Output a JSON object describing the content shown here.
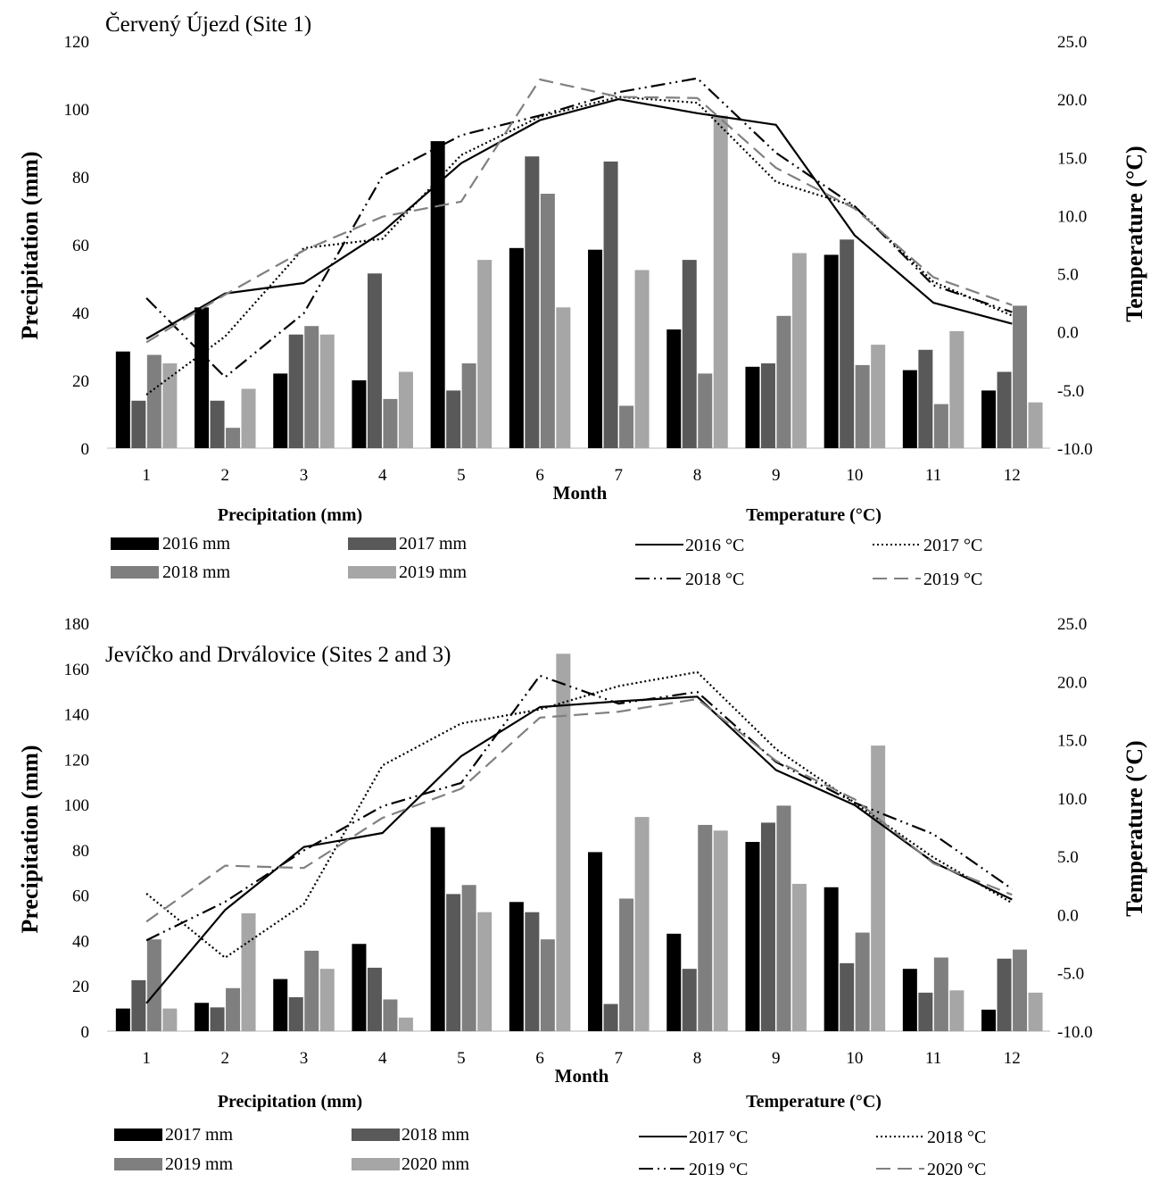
{
  "chart_data": [
    {
      "type": "bar+line",
      "title": "Červený Újezd (Site 1)",
      "xlabel": "Month",
      "ylabel_left": "Precipitation (mm)",
      "ylabel_right": "Temperature (°C)",
      "ylim_left": [
        0,
        120
      ],
      "ylim_right": [
        -10,
        25
      ],
      "yticks_left": [
        "0",
        "20",
        "40",
        "60",
        "80",
        "100",
        "120"
      ],
      "yticks_right": [
        "-10.0",
        "-5.0",
        "0.0",
        "5.0",
        "10.0",
        "15.0",
        "20.0",
        "25.0"
      ],
      "categories": [
        "1",
        "2",
        "3",
        "4",
        "5",
        "6",
        "7",
        "8",
        "9",
        "10",
        "11",
        "12"
      ],
      "legend_precip_title": "Precipitation (mm)",
      "legend_temp_title": "Temperature (°C)",
      "bar_series": [
        {
          "name": "2016 mm",
          "color": "#000000",
          "values": [
            28.5,
            41.5,
            22,
            20,
            90.5,
            59,
            58.5,
            35,
            24,
            57,
            23,
            17
          ]
        },
        {
          "name": "2017 mm",
          "color": "#595959",
          "values": [
            14,
            14,
            33.5,
            51.5,
            17,
            86,
            84.5,
            55.5,
            25,
            61.5,
            29,
            22.5
          ]
        },
        {
          "name": "2018 mm",
          "color": "#7f7f7f",
          "values": [
            27.5,
            6,
            36,
            14.5,
            25,
            75,
            12.5,
            22,
            39,
            24.5,
            13,
            42
          ]
        },
        {
          "name": "2019 mm",
          "color": "#a6a6a6",
          "values": [
            25,
            17.5,
            33.5,
            22.5,
            55.5,
            41.5,
            52.5,
            98,
            57.5,
            30.5,
            34.5,
            13.5
          ]
        }
      ],
      "line_series": [
        {
          "name": "2016 °C",
          "style": "solid",
          "color": "#000000",
          "values": [
            -0.6,
            3.3,
            4.2,
            8.6,
            14.5,
            18.2,
            20.0,
            18.8,
            17.8,
            8.3,
            2.5,
            0.7
          ]
        },
        {
          "name": "2017 °C",
          "style": "dotted",
          "color": "#000000",
          "values": [
            -5.4,
            -0.4,
            7.2,
            8.0,
            15.2,
            18.5,
            20.2,
            19.7,
            12.9,
            10.8,
            4.3,
            1.4
          ]
        },
        {
          "name": "2018 °C",
          "style": "dashdotdot",
          "color": "#000000",
          "values": [
            2.9,
            -3.9,
            1.6,
            13.4,
            16.9,
            18.6,
            20.6,
            21.8,
            15.4,
            10.8,
            4.0,
            1.7
          ]
        },
        {
          "name": "2019 °C",
          "style": "dashed",
          "color": "#808080",
          "values": [
            -0.9,
            3.2,
            7.0,
            9.9,
            11.2,
            21.7,
            20.2,
            20.1,
            14.1,
            10.6,
            4.7,
            2.3
          ]
        }
      ]
    },
    {
      "type": "bar+line",
      "title": "Jevíčko and Drválovice (Sites 2 and 3)",
      "xlabel": "Month",
      "ylabel_left": "Precipitation (mm)",
      "ylabel_right": "Temperature (°C)",
      "ylim_left": [
        0,
        180
      ],
      "ylim_right": [
        -10,
        25
      ],
      "yticks_left": [
        "0",
        "20",
        "40",
        "60",
        "80",
        "100",
        "120",
        "140",
        "160",
        "180"
      ],
      "yticks_right": [
        "-10.0",
        "-5.0",
        "0.0",
        "5.0",
        "10.0",
        "15.0",
        "20.0",
        "25.0"
      ],
      "categories": [
        "1",
        "2",
        "3",
        "4",
        "5",
        "6",
        "7",
        "8",
        "9",
        "10",
        "11",
        "12"
      ],
      "legend_precip_title": "Precipitation (mm)",
      "legend_temp_title": "Temperature (°C)",
      "bar_series": [
        {
          "name": "2017 mm",
          "color": "#000000",
          "values": [
            10,
            12.5,
            23,
            38.5,
            90,
            57,
            79,
            43,
            83.5,
            63.5,
            27.5,
            9.5
          ]
        },
        {
          "name": "2018 mm",
          "color": "#595959",
          "values": [
            22.5,
            10.5,
            15,
            28,
            60.5,
            52.5,
            12,
            27.5,
            92,
            30,
            17,
            32
          ]
        },
        {
          "name": "2019 mm",
          "color": "#7f7f7f",
          "values": [
            40.5,
            19,
            35.5,
            14,
            64.5,
            40.5,
            58.5,
            91,
            99.5,
            43.5,
            32.5,
            36
          ]
        },
        {
          "name": "2020 mm",
          "color": "#a6a6a6",
          "values": [
            10,
            52,
            27.5,
            6,
            52.5,
            166.5,
            94.5,
            88.5,
            65,
            126,
            18,
            17
          ]
        }
      ],
      "line_series": [
        {
          "name": "2017 °C",
          "style": "solid",
          "color": "#000000",
          "values": [
            -7.6,
            0.4,
            5.8,
            7.0,
            13.6,
            17.8,
            18.3,
            18.7,
            12.4,
            9.4,
            4.5,
            1.3
          ]
        },
        {
          "name": "2018 °C",
          "style": "dotted",
          "color": "#000000",
          "values": [
            1.8,
            -3.7,
            0.9,
            12.8,
            16.4,
            17.6,
            19.6,
            20.8,
            14.2,
            9.6,
            4.9,
            1.0
          ]
        },
        {
          "name": "2019 °C",
          "style": "dashdotdot",
          "color": "#000000",
          "values": [
            -2.2,
            1.1,
            5.5,
            9.3,
            11.3,
            20.5,
            18.1,
            19.1,
            13.1,
            9.6,
            6.9,
            2.2
          ]
        },
        {
          "name": "2020 °C",
          "style": "dashed",
          "color": "#808080",
          "values": [
            -0.6,
            4.2,
            4.0,
            8.3,
            10.8,
            16.9,
            17.4,
            18.5,
            13.2,
            9.9,
            4.4,
            1.7
          ]
        }
      ]
    }
  ]
}
